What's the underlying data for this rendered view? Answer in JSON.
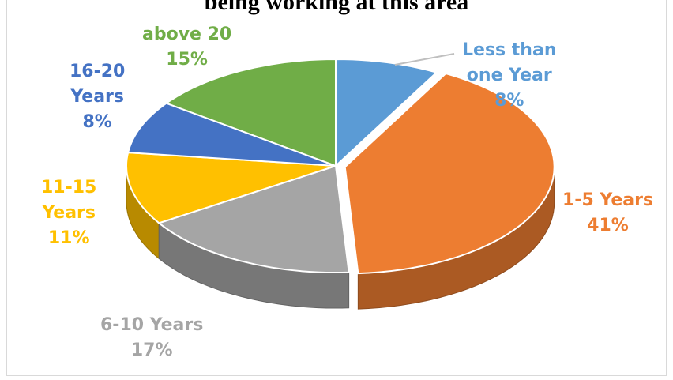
{
  "chart_data": {
    "type": "pie",
    "title": "being working at this area",
    "slices": [
      {
        "label": "Less than one Year",
        "label_lines": [
          "Less than",
          "one Year"
        ],
        "value": 8,
        "pct": "8%",
        "color": "#5b9bd5"
      },
      {
        "label": "1-5 Years",
        "label_lines": [
          "1-5 Years"
        ],
        "value": 41,
        "pct": "41%",
        "color": "#ed7d31"
      },
      {
        "label": "6-10 Years",
        "label_lines": [
          "6-10 Years"
        ],
        "value": 17,
        "pct": "17%",
        "color": "#a5a5a5"
      },
      {
        "label": "11-15 Years",
        "label_lines": [
          "11-15",
          "Years"
        ],
        "value": 11,
        "pct": "11%",
        "color": "#ffc000"
      },
      {
        "label": "16-20 Years",
        "label_lines": [
          "16-20",
          "Years"
        ],
        "value": 8,
        "pct": "8%",
        "color": "#4472c4"
      },
      {
        "label": "above 20",
        "label_lines": [
          "above 20"
        ],
        "value": 15,
        "pct": "15%",
        "color": "#70ad47"
      }
    ]
  }
}
